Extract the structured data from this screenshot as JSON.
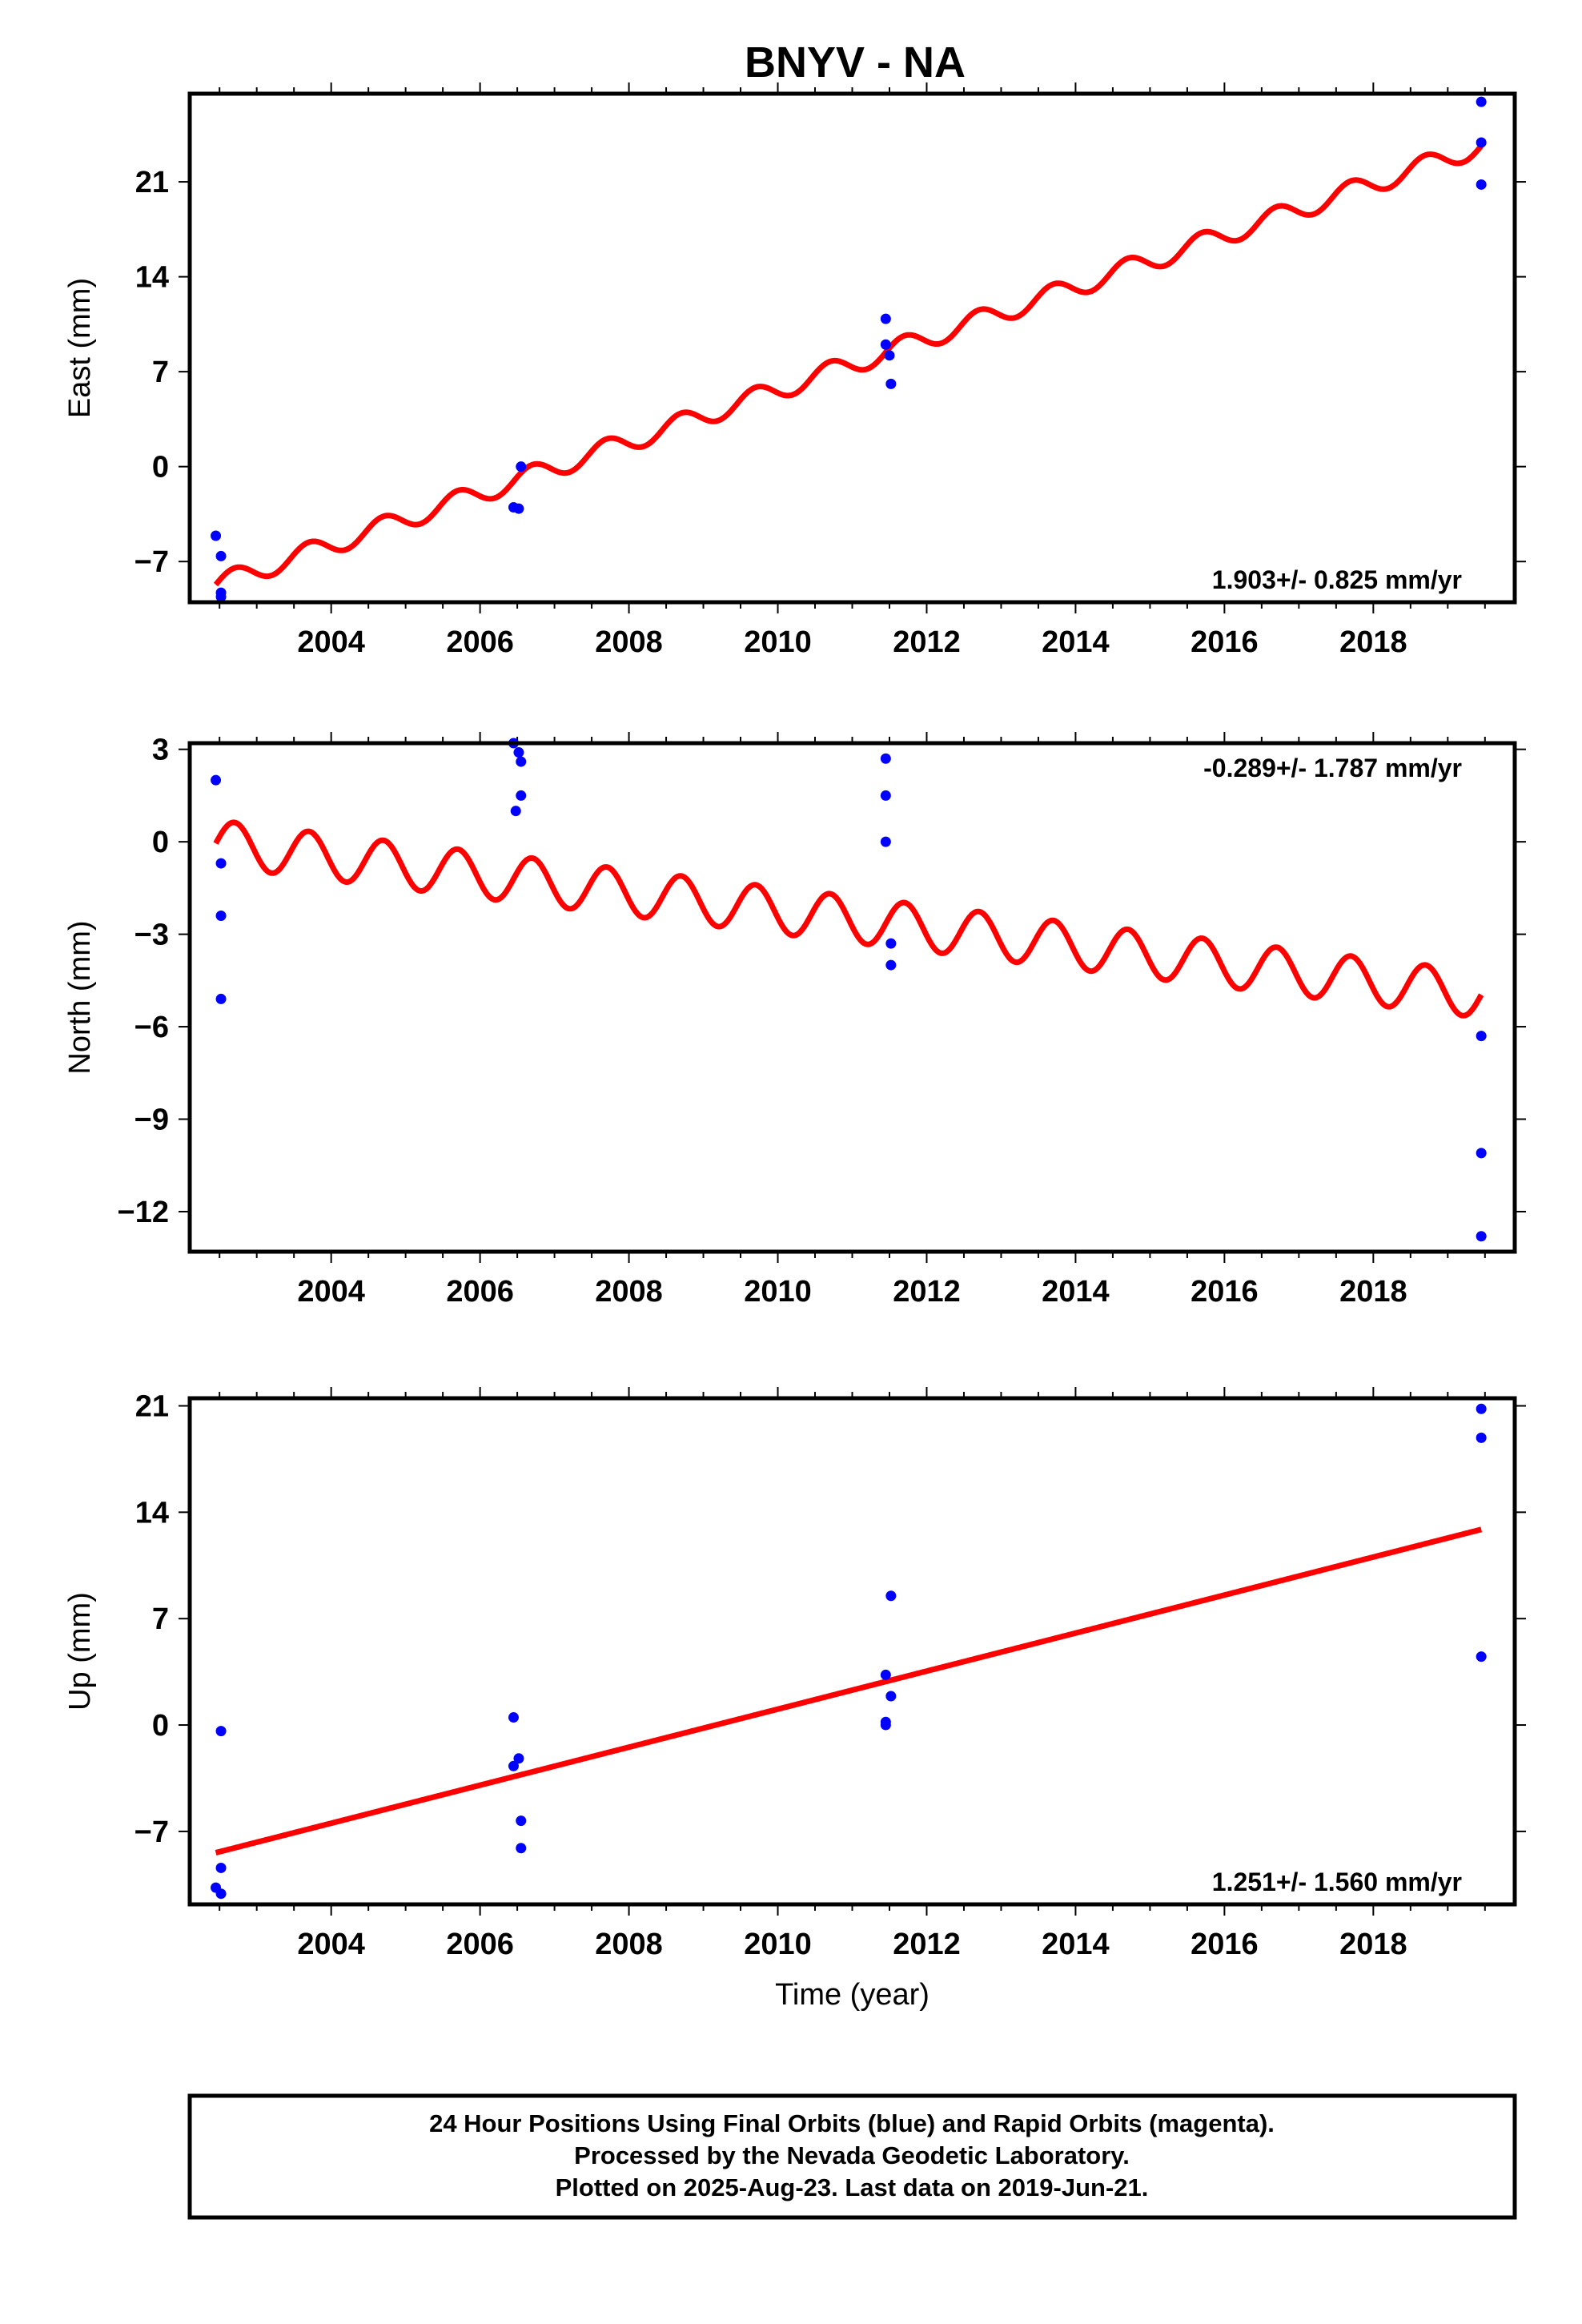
{
  "title": "BNYV - NA",
  "colors": {
    "model": "#ff0000",
    "final_orbits": "#0000ff",
    "frame": "#000000"
  },
  "chart_data": [
    {
      "type": "scatter",
      "panel": "east",
      "ylabel": "East (mm)",
      "xlim": [
        2002.1,
        2019.9
      ],
      "ylim": [
        -10,
        27.5
      ],
      "xticks": [
        2004,
        2006,
        2008,
        2010,
        2012,
        2014,
        2016,
        2018
      ],
      "yticks": [
        -7,
        0,
        7,
        14,
        21
      ],
      "ytick_labels": [
        "−7",
        "0",
        "7",
        "14",
        "21"
      ],
      "rate_label": "1.903+/- 0.825 mm/yr",
      "rate_position": "bottom-right",
      "model": {
        "start": 2002.45,
        "end": 2019.45,
        "y0": -8.7,
        "slope": 1.903,
        "amp": 0.75,
        "phase": 0.0
      },
      "points": [
        [
          2002.45,
          -5.1
        ],
        [
          2002.52,
          -6.6
        ],
        [
          2002.52,
          -9.3
        ],
        [
          2002.52,
          -9.6
        ],
        [
          2006.45,
          -3.0
        ],
        [
          2006.52,
          -3.1
        ],
        [
          2006.55,
          0.0
        ],
        [
          2011.45,
          10.9
        ],
        [
          2011.45,
          9.0
        ],
        [
          2011.5,
          8.2
        ],
        [
          2011.52,
          6.1
        ],
        [
          2019.45,
          26.9
        ],
        [
          2019.45,
          23.9
        ],
        [
          2019.45,
          20.8
        ]
      ]
    },
    {
      "type": "scatter",
      "panel": "north",
      "ylabel": "North (mm)",
      "xlim": [
        2002.1,
        2019.9
      ],
      "ylim": [
        -13.3,
        3.2
      ],
      "xticks": [
        2004,
        2006,
        2008,
        2010,
        2012,
        2014,
        2016,
        2018
      ],
      "yticks": [
        -12,
        -9,
        -6,
        -3,
        0,
        3
      ],
      "ytick_labels": [
        "−12",
        "−9",
        "−6",
        "−3",
        "0",
        "3"
      ],
      "rate_label": "-0.289+/- 1.787 mm/yr",
      "rate_position": "top-right",
      "model": {
        "start": 2002.45,
        "end": 2019.45,
        "y0": -0.05,
        "slope": -0.289,
        "amp": 0.75,
        "phase": 0.0
      },
      "points": [
        [
          2002.45,
          2.0
        ],
        [
          2002.52,
          -0.7
        ],
        [
          2002.52,
          -2.4
        ],
        [
          2002.52,
          -5.1
        ],
        [
          2006.45,
          3.2
        ],
        [
          2006.48,
          1.0
        ],
        [
          2006.52,
          2.9
        ],
        [
          2006.55,
          2.6
        ],
        [
          2006.55,
          1.5
        ],
        [
          2011.45,
          2.7
        ],
        [
          2011.45,
          1.5
        ],
        [
          2011.45,
          0.0
        ],
        [
          2011.52,
          -3.3
        ],
        [
          2011.52,
          -4.0
        ],
        [
          2019.45,
          -6.3
        ],
        [
          2019.45,
          -10.1
        ],
        [
          2019.45,
          -12.8
        ]
      ]
    },
    {
      "type": "scatter",
      "panel": "up",
      "ylabel": "Up (mm)",
      "xlabel": "Time (year)",
      "xlim": [
        2002.1,
        2019.9
      ],
      "ylim": [
        -11.8,
        21.5
      ],
      "xticks": [
        2004,
        2006,
        2008,
        2010,
        2012,
        2014,
        2016,
        2018
      ],
      "yticks": [
        -7,
        0,
        7,
        14,
        21
      ],
      "ytick_labels": [
        "−7",
        "0",
        "7",
        "14",
        "21"
      ],
      "rate_label": "1.251+/- 1.560 mm/yr",
      "rate_position": "bottom-right",
      "model": {
        "start": 2002.45,
        "end": 2019.45,
        "y0": -8.4,
        "slope": 1.251,
        "amp": 0.0,
        "phase": 0.0
      },
      "points": [
        [
          2002.45,
          -10.7
        ],
        [
          2002.52,
          -9.4
        ],
        [
          2002.52,
          -11.1
        ],
        [
          2002.52,
          -0.4
        ],
        [
          2006.45,
          0.5
        ],
        [
          2006.45,
          -2.7
        ],
        [
          2006.52,
          -2.2
        ],
        [
          2006.55,
          -6.3
        ],
        [
          2006.55,
          -8.1
        ],
        [
          2011.45,
          3.3
        ],
        [
          2011.45,
          0.2
        ],
        [
          2011.45,
          0.0
        ],
        [
          2011.52,
          8.5
        ],
        [
          2011.52,
          1.9
        ],
        [
          2019.45,
          20.8
        ],
        [
          2019.45,
          18.9
        ],
        [
          2019.45,
          4.5
        ]
      ]
    }
  ],
  "footer": {
    "line1": "24 Hour Positions Using Final Orbits (blue) and Rapid Orbits (magenta).",
    "line2": "Processed by the Nevada Geodetic Laboratory.",
    "line3": "Plotted on 2025-Aug-23. Last data on 2019-Jun-21."
  }
}
